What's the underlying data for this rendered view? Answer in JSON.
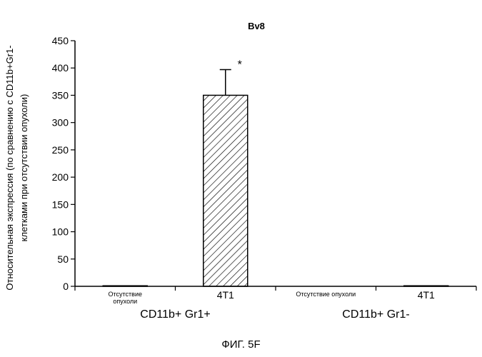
{
  "chart_data": {
    "type": "bar",
    "title": "Bv8",
    "ylabel_line1": "Относительная экспрессия (по сравнению с CD11b+Gr1-",
    "ylabel_line2": "клетками при отсутствии опухоли)",
    "ylim": [
      0,
      450
    ],
    "yticks": [
      0,
      50,
      100,
      150,
      200,
      250,
      300,
      350,
      400,
      450
    ],
    "categories": [
      [
        "Отсутствие",
        "опухоли"
      ],
      [
        "4T1"
      ],
      [
        "Отсутствие опухоли"
      ],
      [
        "4T1"
      ]
    ],
    "values": [
      1,
      350,
      0,
      1
    ],
    "error_bars": [
      0,
      47,
      0,
      0
    ],
    "hatched": [
      false,
      true,
      false,
      false
    ],
    "significance": [
      "",
      "*",
      "",
      ""
    ],
    "groups": [
      {
        "label": "CD11b+ Gr1+",
        "categories": [
          0,
          1
        ]
      },
      {
        "label": "CD11b+ Gr1-",
        "categories": [
          2,
          3
        ]
      }
    ],
    "grid": false,
    "legend": false
  },
  "caption": "ФИГ. 5F"
}
